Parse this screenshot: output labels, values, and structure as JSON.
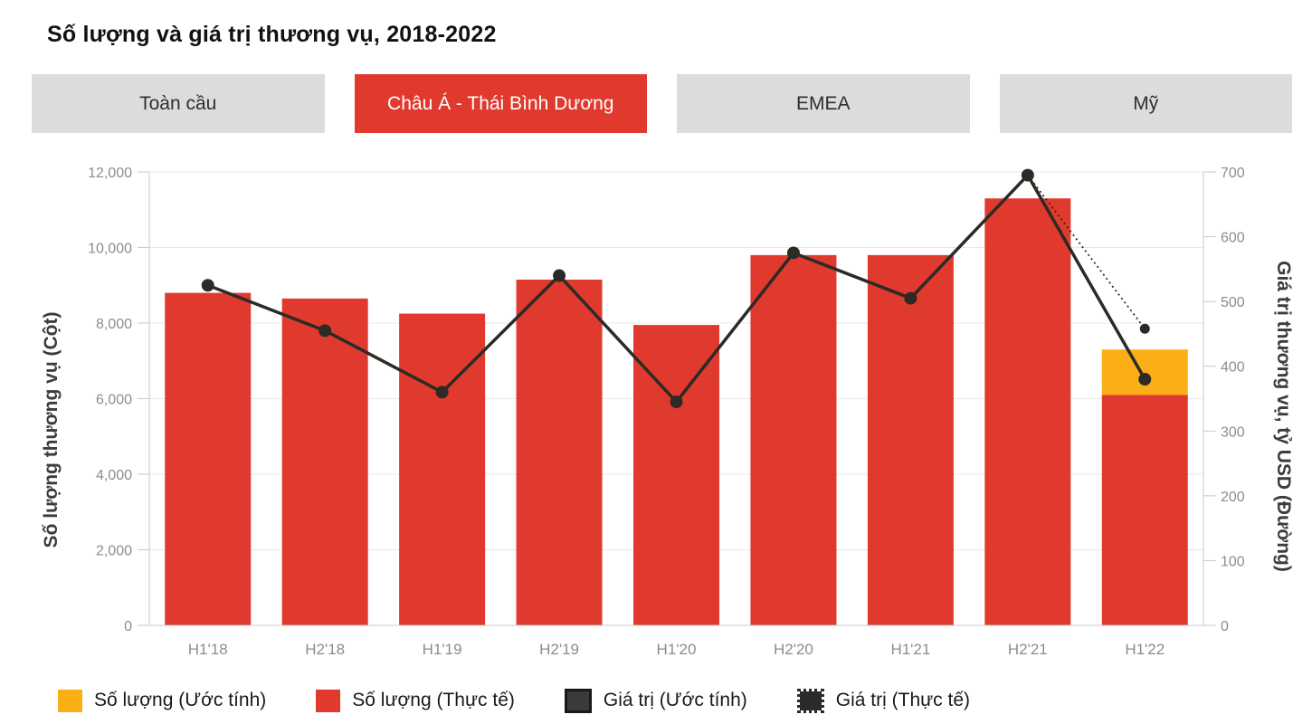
{
  "title": "Số lượng và giá trị thương vụ, 2018-2022",
  "tabs": [
    {
      "label": "Toàn cầu",
      "active": false
    },
    {
      "label": "Châu Á - Thái Bình Dương",
      "active": true
    },
    {
      "label": "EMEA",
      "active": false
    },
    {
      "label": "Mỹ",
      "active": false
    }
  ],
  "colors": {
    "bar_actual": "#E03A2E",
    "bar_estimate": "#FBAF17",
    "line": "#2D2A26",
    "tab_bg": "#DCDCDC",
    "grid": "#E8E8E8",
    "axis": "#C9C9C9",
    "tick_text": "#8C8C8C",
    "axis_title_text": "#3C3C3C"
  },
  "chart_data": {
    "type": "combo-bar-line",
    "categories": [
      "H1'18",
      "H2'18",
      "H1'19",
      "H2'19",
      "H1'20",
      "H2'20",
      "H1'21",
      "H2'21",
      "H1'22"
    ],
    "left_axis": {
      "title": "Số lượng thương vụ (Cột)",
      "min": 0,
      "max": 12000,
      "tick_step": 2000,
      "tick_values": [
        0,
        2000,
        4000,
        6000,
        8000,
        10000,
        12000
      ],
      "tick_labels": [
        "0",
        "2,000",
        "4,000",
        "6,000",
        "8,000",
        "10,000",
        "12,000"
      ]
    },
    "right_axis": {
      "title": "Giá trị thương vụ, tỷ USD (Đường)",
      "min": 0,
      "max": 700,
      "tick_step": 100,
      "tick_values": [
        0,
        100,
        200,
        300,
        400,
        500,
        600,
        700
      ],
      "tick_labels": [
        "0",
        "100",
        "200",
        "300",
        "400",
        "500",
        "600",
        "700"
      ]
    },
    "grid": "horizontal-left-ticks",
    "legend_position": "bottom",
    "series": [
      {
        "name": "Số lượng (Thực tế)",
        "type": "bar",
        "axis": "left",
        "values": [
          8800,
          8650,
          8250,
          9150,
          7950,
          9800,
          9800,
          11300,
          6100
        ]
      },
      {
        "name": "Số lượng (Ước tính)",
        "type": "bar-stack-top",
        "axis": "left",
        "values": [
          null,
          null,
          null,
          null,
          null,
          null,
          null,
          null,
          7300
        ]
      },
      {
        "name": "Giá trị (Ước tính)",
        "type": "line",
        "style": "solid",
        "axis": "right",
        "values": [
          525,
          455,
          360,
          540,
          345,
          575,
          505,
          695,
          380
        ]
      },
      {
        "name": "Giá trị (Thực tế)",
        "type": "line",
        "style": "dotted",
        "axis": "right",
        "values": [
          null,
          null,
          null,
          null,
          null,
          null,
          null,
          695,
          458
        ]
      }
    ]
  },
  "legend": [
    {
      "label": "Số lượng (Ước tính)",
      "swatch": "yellow-square"
    },
    {
      "label": "Số lượng (Thực tế)",
      "swatch": "red-square"
    },
    {
      "label": "Giá trị (Ước tính)",
      "swatch": "dark-square-solid"
    },
    {
      "label": "Giá trị (Thực tế)",
      "swatch": "dark-square-dotted"
    }
  ]
}
